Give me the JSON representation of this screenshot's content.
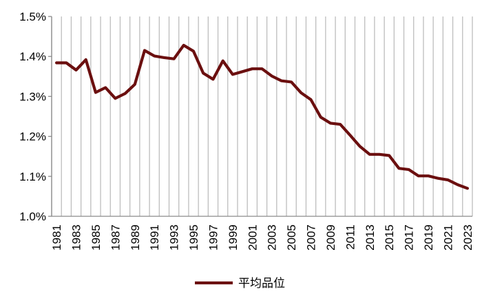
{
  "chart_data": {
    "type": "line",
    "title": "",
    "xlabel": "",
    "ylabel": "",
    "x": [
      1981,
      1982,
      1983,
      1984,
      1985,
      1986,
      1987,
      1988,
      1989,
      1990,
      1991,
      1992,
      1993,
      1994,
      1995,
      1996,
      1997,
      1998,
      1999,
      2000,
      2001,
      2002,
      2003,
      2004,
      2005,
      2006,
      2007,
      2008,
      2009,
      2010,
      2011,
      2012,
      2013,
      2014,
      2015,
      2016,
      2017,
      2018,
      2019,
      2020,
      2021,
      2022,
      2023
    ],
    "x_tick_labels": [
      "1981",
      "1983",
      "1985",
      "1987",
      "1989",
      "1991",
      "1993",
      "1995",
      "1997",
      "1999",
      "2001",
      "2003",
      "2005",
      "2007",
      "2009",
      "2011",
      "2013",
      "2015",
      "2017",
      "2019",
      "2021",
      "2023"
    ],
    "y_tick_labels": [
      "1.0%",
      "1.1%",
      "1.2%",
      "1.3%",
      "1.4%",
      "1.5%"
    ],
    "ylim": [
      1.0,
      1.5
    ],
    "grid": "vertical",
    "legend_position": "bottom-center",
    "series": [
      {
        "name": "平均品位",
        "color": "#6b0f0f",
        "values": [
          1.384,
          1.384,
          1.366,
          1.392,
          1.31,
          1.322,
          1.295,
          1.307,
          1.33,
          1.415,
          1.401,
          1.397,
          1.394,
          1.428,
          1.413,
          1.358,
          1.343,
          1.389,
          1.355,
          1.362,
          1.369,
          1.369,
          1.351,
          1.339,
          1.336,
          1.309,
          1.292,
          1.248,
          1.233,
          1.23,
          1.203,
          1.175,
          1.155,
          1.155,
          1.152,
          1.12,
          1.117,
          1.101,
          1.101,
          1.095,
          1.091,
          1.079,
          1.07
        ]
      }
    ]
  }
}
